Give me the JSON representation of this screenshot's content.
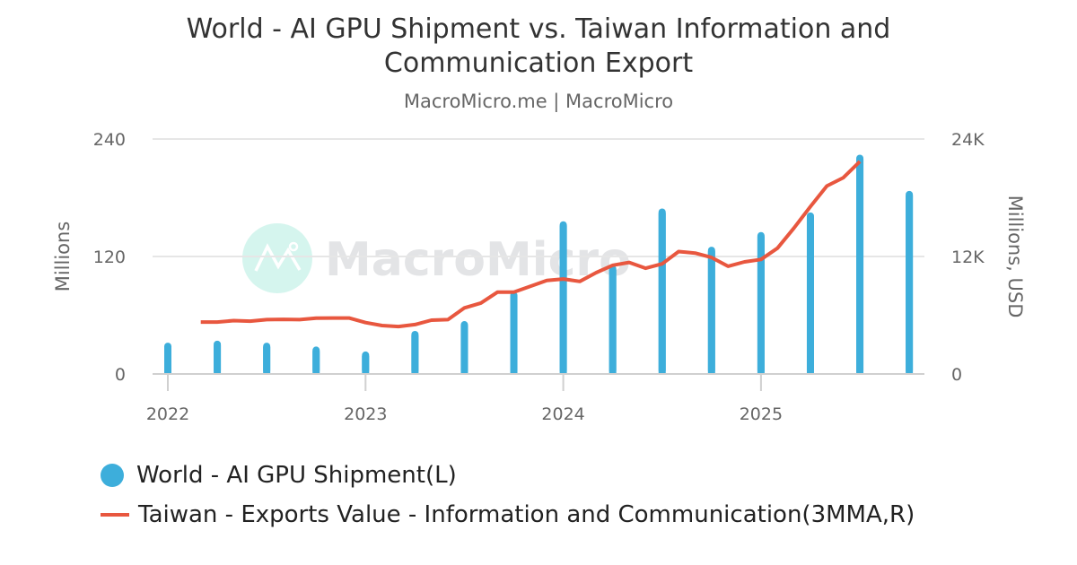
{
  "header": {
    "title_line1": "World - AI GPU Shipment vs. Taiwan Information and",
    "title_line2": "Communication Export",
    "subtitle": "MacroMicro.me | MacroMicro"
  },
  "watermark": {
    "text": "MacroMicro",
    "icon": "macromicro-logo-icon"
  },
  "axes": {
    "left_title": "Millions",
    "right_title": "Millions, USD",
    "left_ticks": [
      "0",
      "120",
      "240"
    ],
    "right_ticks": [
      "0",
      "12K",
      "24K"
    ],
    "x_ticks": [
      "2022",
      "2023",
      "2024",
      "2025"
    ]
  },
  "legend": {
    "items": [
      {
        "label": "World - AI GPU Shipment(L)",
        "color": "#3daedb",
        "marker": "circle"
      },
      {
        "label": "Taiwan - Exports Value - Information and Communication(3MMA,R)",
        "color": "#e8573f",
        "marker": "line"
      }
    ]
  },
  "chart_data": {
    "type": "bar+line",
    "title": "World - AI GPU Shipment vs. Taiwan Information and Communication Export",
    "subtitle": "MacroMicro.me | MacroMicro",
    "xlabel": "",
    "ylabel_left": "Millions",
    "ylabel_right": "Millions, USD",
    "ylim_left": [
      0,
      240
    ],
    "ylim_right": [
      0,
      24000
    ],
    "x_tick_labels": [
      "2022",
      "2023",
      "2024",
      "2025"
    ],
    "grid": true,
    "legend_position": "bottom-left",
    "series": [
      {
        "name": "World - AI GPU Shipment(L)",
        "type": "bar",
        "axis": "left",
        "color": "#3daedb",
        "categories": [
          "2022Q1",
          "2022Q2",
          "2022Q3",
          "2022Q4",
          "2023Q1",
          "2023Q2",
          "2023Q3",
          "2023Q4",
          "2024Q1",
          "2024Q2",
          "2024Q3",
          "2024Q4",
          "2025Q1",
          "2025Q2",
          "2025Q3",
          "2025Q4"
        ],
        "values": [
          32,
          34,
          32,
          28,
          23,
          44,
          54,
          84,
          156,
          111,
          169,
          130,
          145,
          165,
          224,
          187
        ]
      },
      {
        "name": "Taiwan - Exports Value - Information and Communication(3MMA,R)",
        "type": "line",
        "axis": "right",
        "color": "#e8573f",
        "x": [
          "2022-03",
          "2022-04",
          "2022-05",
          "2022-06",
          "2022-07",
          "2022-08",
          "2022-09",
          "2022-10",
          "2022-11",
          "2022-12",
          "2023-01",
          "2023-02",
          "2023-03",
          "2023-04",
          "2023-05",
          "2023-06",
          "2023-07",
          "2023-08",
          "2023-09",
          "2023-10",
          "2023-11",
          "2023-12",
          "2024-01",
          "2024-02",
          "2024-03",
          "2024-04",
          "2024-05",
          "2024-06",
          "2024-07",
          "2024-08",
          "2024-09",
          "2024-10",
          "2024-11",
          "2024-12",
          "2025-01",
          "2025-02",
          "2025-03",
          "2025-04",
          "2025-05",
          "2025-06",
          "2025-07"
        ],
        "values": [
          5300,
          5300,
          5450,
          5400,
          5550,
          5580,
          5550,
          5700,
          5720,
          5720,
          5250,
          4950,
          4850,
          5050,
          5500,
          5550,
          6750,
          7250,
          8350,
          8350,
          8950,
          9550,
          9700,
          9450,
          10350,
          11100,
          11400,
          10800,
          11250,
          12500,
          12350,
          11900,
          11000,
          11450,
          11700,
          12850,
          14900,
          17100,
          19200,
          20050,
          21700
        ]
      }
    ]
  }
}
